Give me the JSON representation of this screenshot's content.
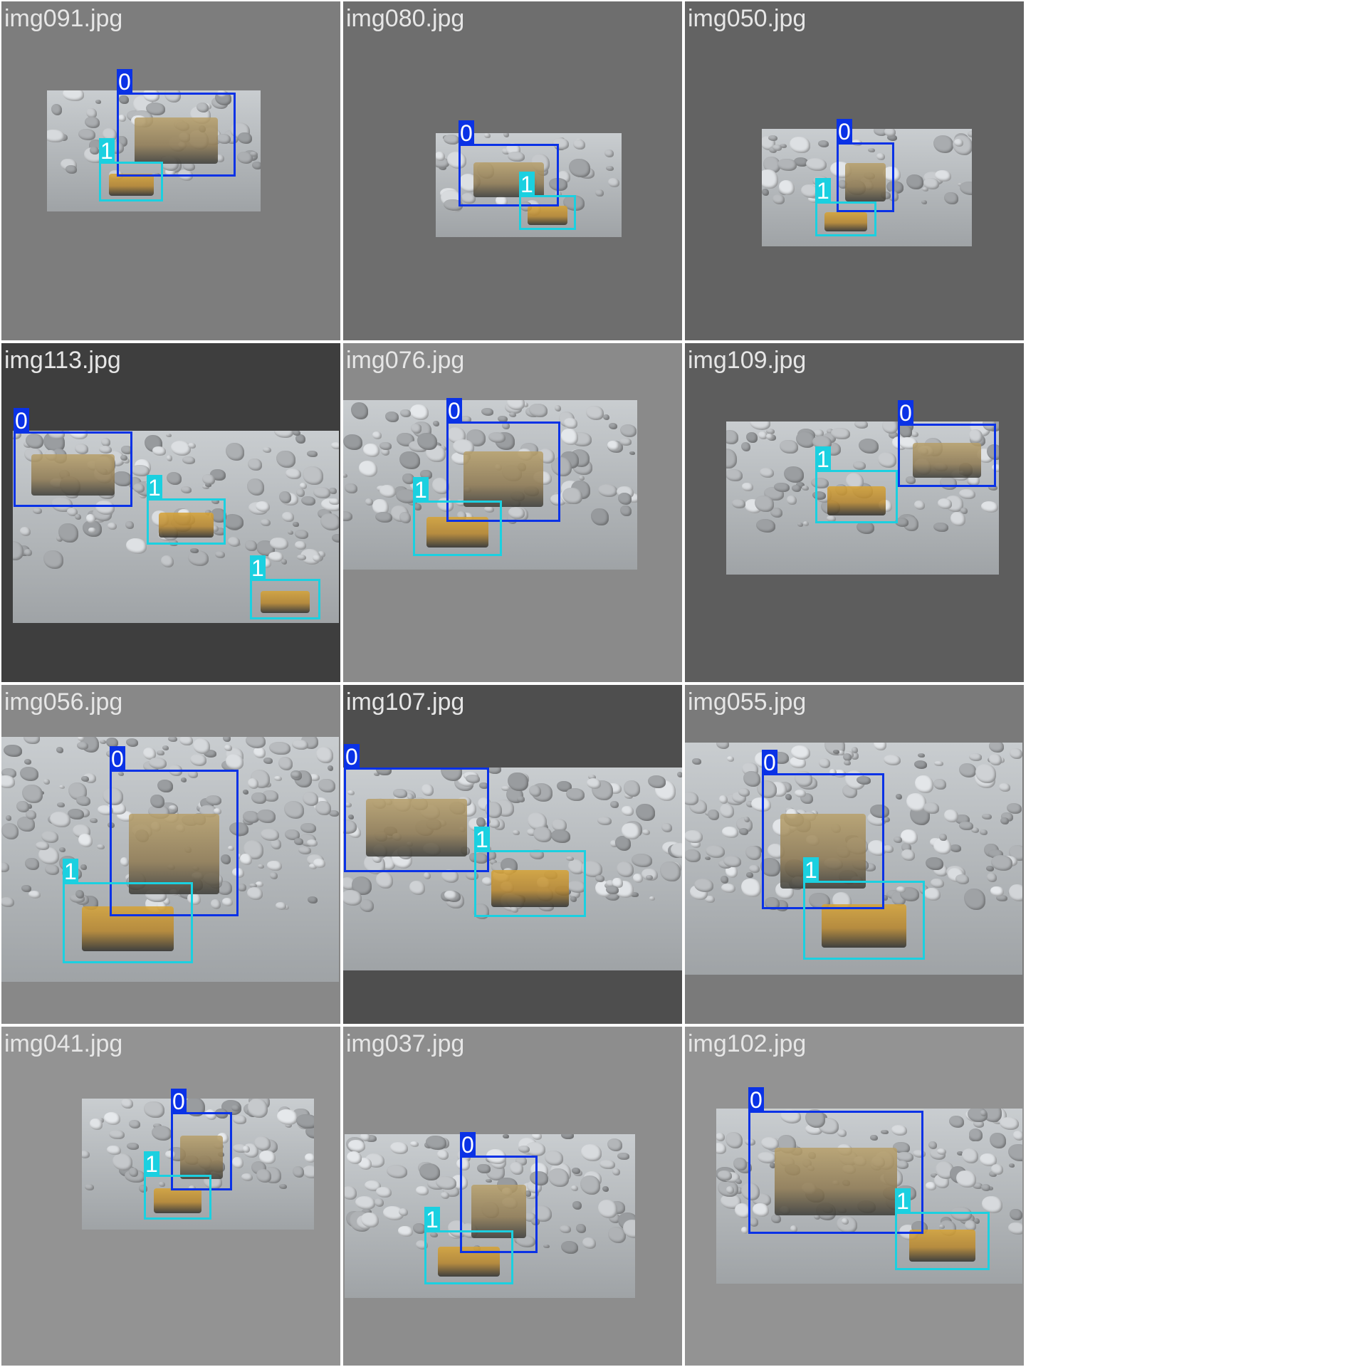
{
  "class_colors": {
    "0": "#0a32e6",
    "1": "#1bd0e0"
  },
  "tiles": [
    {
      "filename": "img091.jpg",
      "background": "#7d7d7d",
      "boxes": [
        {
          "label": "0"
        },
        {
          "label": "1"
        }
      ]
    },
    {
      "filename": "img080.jpg",
      "background": "#6e6e6e",
      "boxes": [
        {
          "label": "0"
        },
        {
          "label": "1"
        }
      ]
    },
    {
      "filename": "img050.jpg",
      "background": "#636363",
      "boxes": [
        {
          "label": "0"
        },
        {
          "label": "1"
        }
      ]
    },
    {
      "filename": "img113.jpg",
      "background": "#3e3e3e",
      "boxes": [
        {
          "label": "0"
        },
        {
          "label": "1"
        },
        {
          "label": "1"
        }
      ]
    },
    {
      "filename": "img076.jpg",
      "background": "#8a8a8a",
      "boxes": [
        {
          "label": "0"
        },
        {
          "label": "1"
        }
      ]
    },
    {
      "filename": "img109.jpg",
      "background": "#5d5d5d",
      "boxes": [
        {
          "label": "0"
        },
        {
          "label": "1"
        }
      ]
    },
    {
      "filename": "img056.jpg",
      "background": "#888888",
      "boxes": [
        {
          "label": "0"
        },
        {
          "label": "1"
        }
      ]
    },
    {
      "filename": "img107.jpg",
      "background": "#4e4e4e",
      "boxes": [
        {
          "label": "0"
        },
        {
          "label": "1"
        }
      ]
    },
    {
      "filename": "img055.jpg",
      "background": "#7a7a7a",
      "boxes": [
        {
          "label": "0"
        },
        {
          "label": "1"
        }
      ]
    },
    {
      "filename": "img041.jpg",
      "background": "#939393",
      "boxes": [
        {
          "label": "0"
        },
        {
          "label": "1"
        }
      ]
    },
    {
      "filename": "img037.jpg",
      "background": "#8d8d8d",
      "boxes": [
        {
          "label": "0"
        },
        {
          "label": "1"
        }
      ]
    },
    {
      "filename": "img102.jpg",
      "background": "#939393",
      "boxes": [
        {
          "label": "0"
        },
        {
          "label": "1"
        }
      ]
    }
  ]
}
